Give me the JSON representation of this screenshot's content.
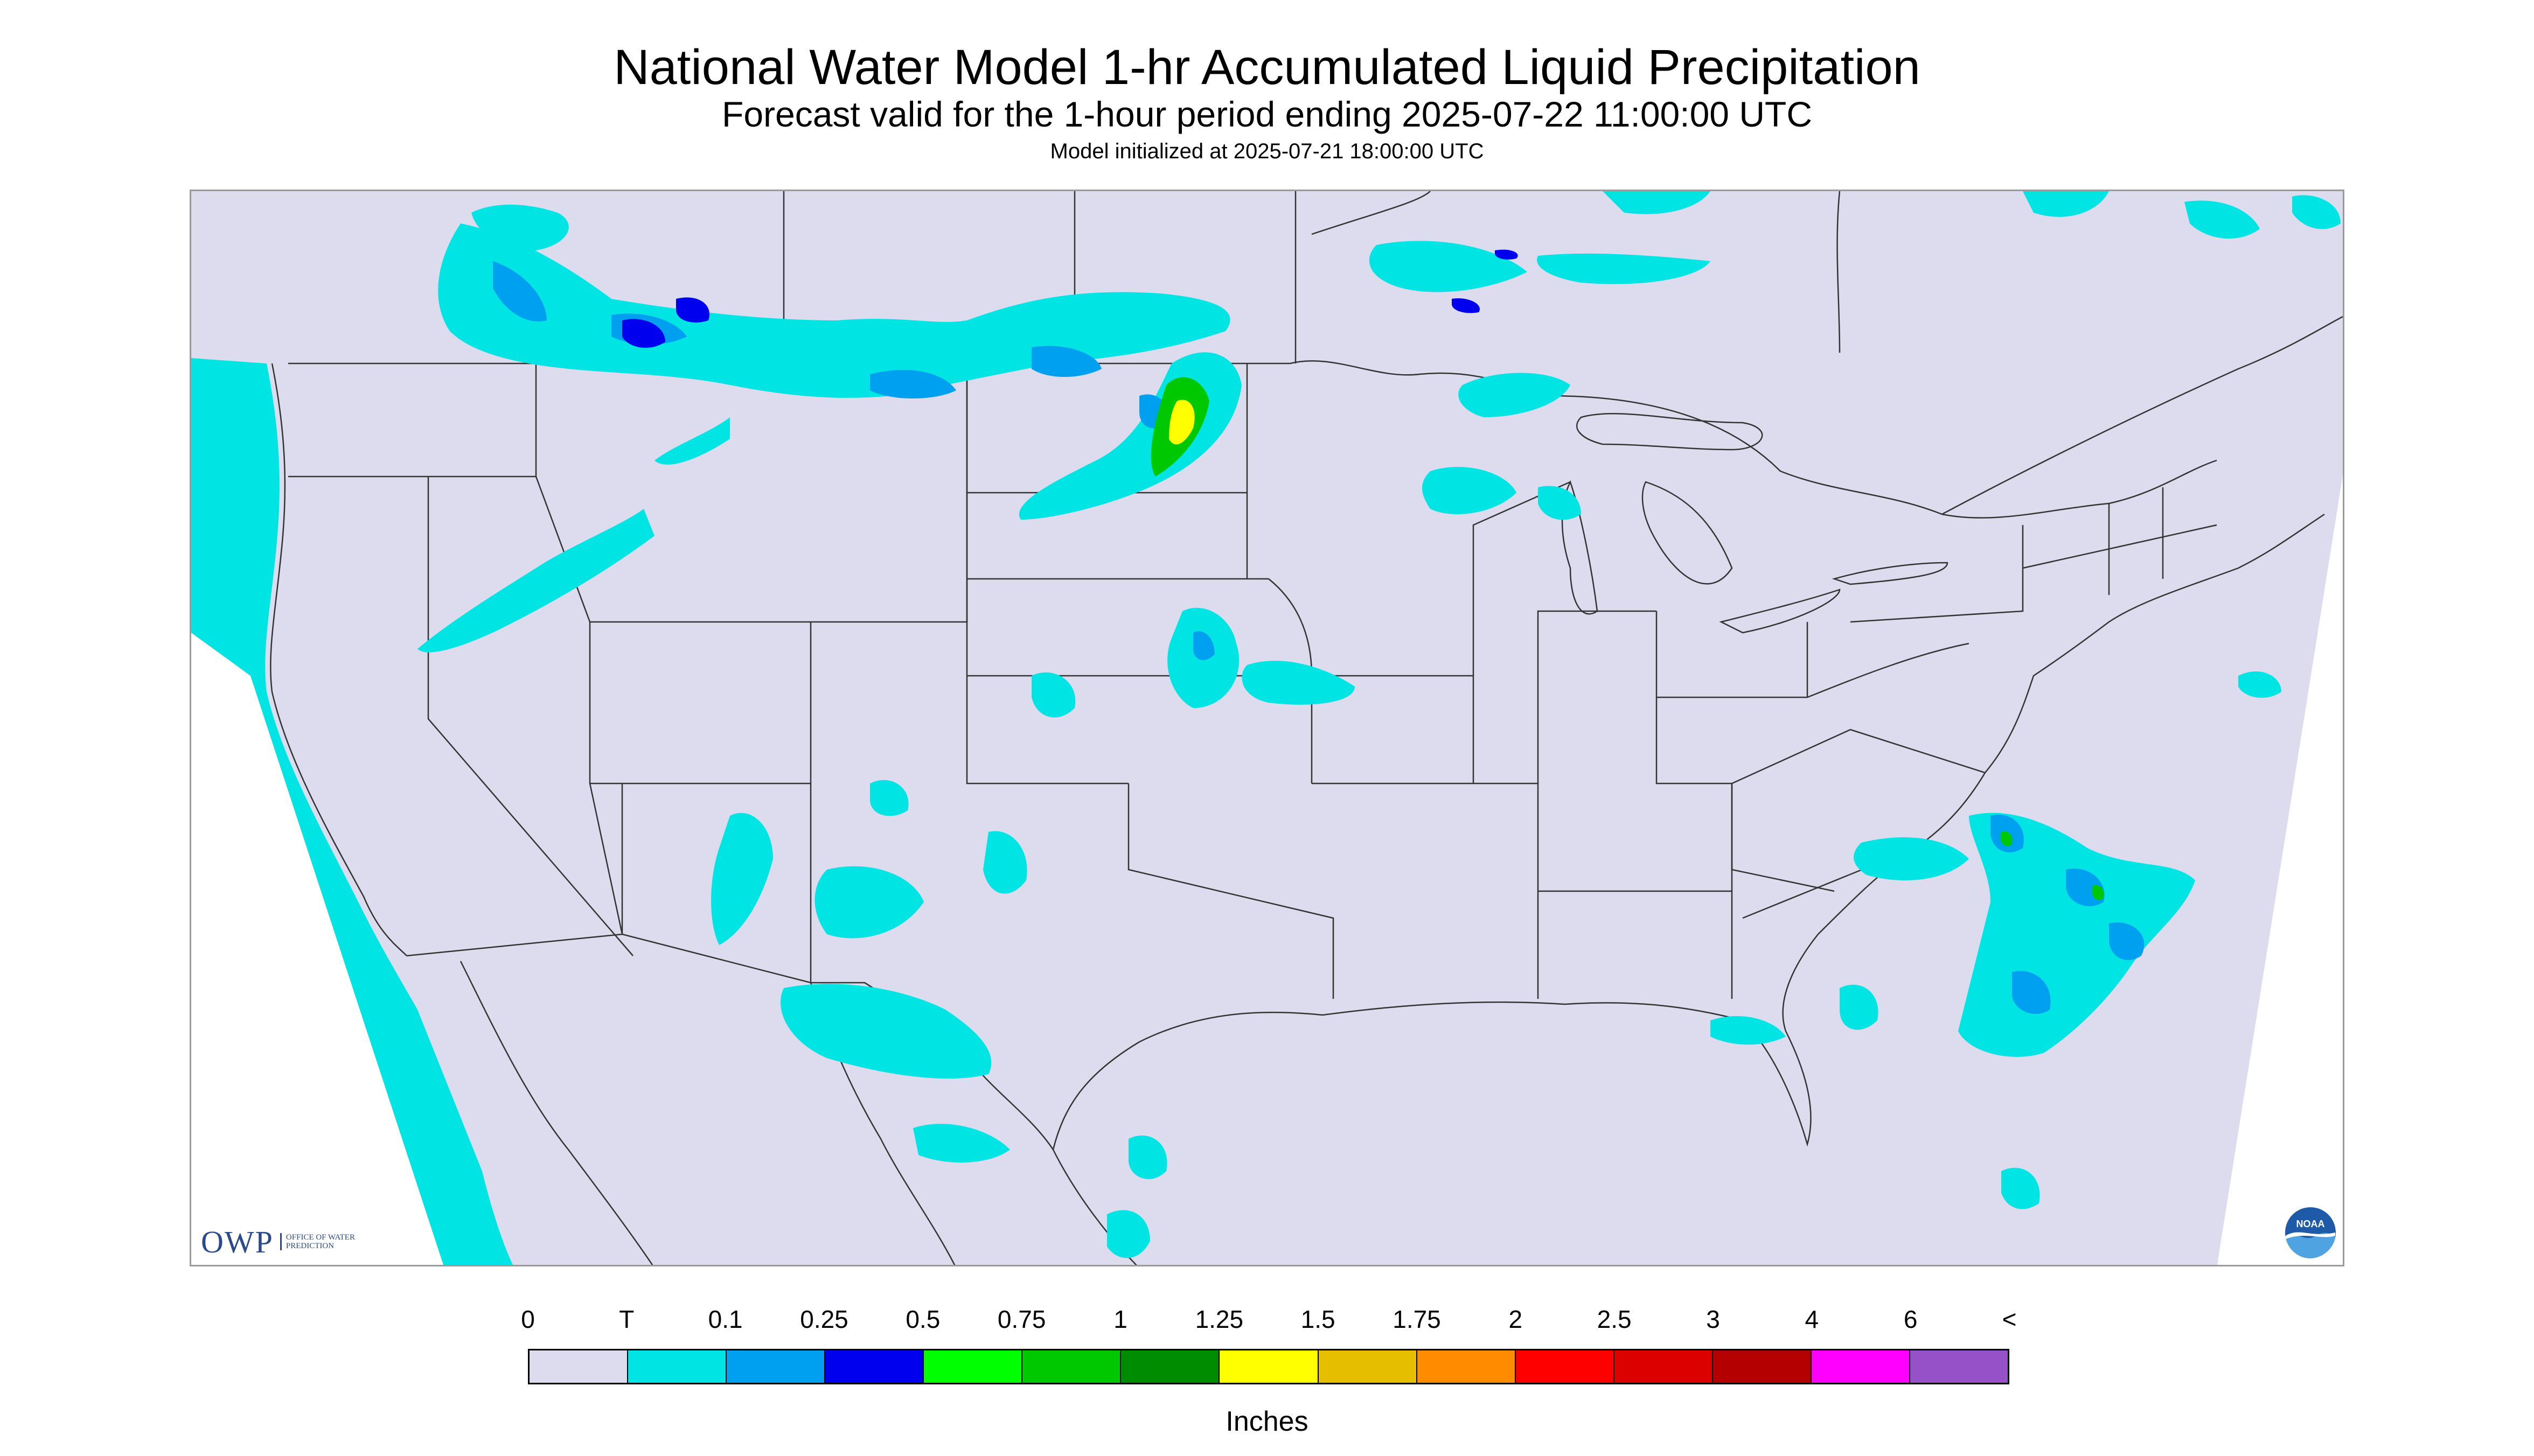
{
  "header": {
    "title": "National Water Model 1-hr Accumulated Liquid Precipitation",
    "subtitle": "Forecast valid for the 1-hour period ending 2025-07-22 11:00:00 UTC",
    "initialized": "Model initialized at 2025-07-21 18:00:00 UTC"
  },
  "logos": {
    "owp_text": "OWP",
    "owp_sub": "OFFICE OF WATER PREDICTION",
    "noaa_text": "NOAA"
  },
  "legend": {
    "labels": [
      "0",
      "T",
      "0.1",
      "0.25",
      "0.5",
      "0.75",
      "1",
      "1.25",
      "1.5",
      "1.75",
      "2",
      "2.5",
      "3",
      "4",
      "6",
      "<"
    ],
    "colors": [
      "#dcdcee",
      "#00e4e4",
      "#00a0f0",
      "#0000ee",
      "#00ff00",
      "#00c800",
      "#008c00",
      "#ffff00",
      "#e6be00",
      "#ff8c00",
      "#ff0000",
      "#dc0000",
      "#b40000",
      "#ff00ff",
      "#9650c8"
    ],
    "units": "Inches"
  },
  "colors": {
    "domain_fill": "#dcdcee",
    "outside_fill": "#ffffff",
    "border_lines": "#333333",
    "trace": "#00e4e4",
    "light": "#00a0f0",
    "moderate": "#0000ee",
    "heavy": "#00c800",
    "heavier": "#ffff00"
  }
}
